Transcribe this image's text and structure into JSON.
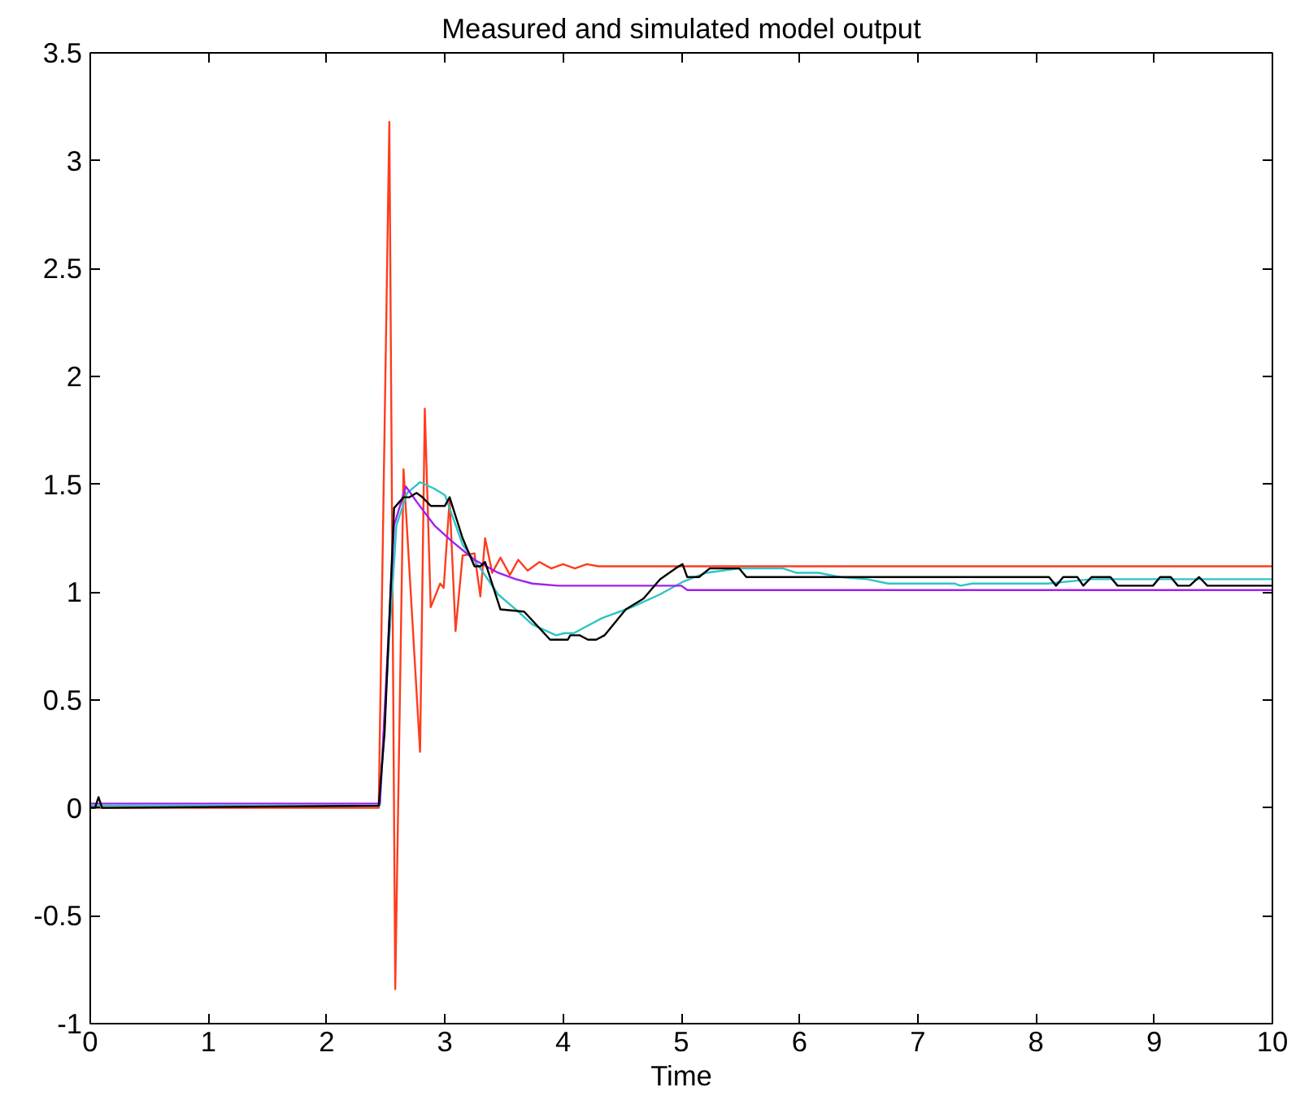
{
  "chart_data": {
    "type": "line",
    "title": "Measured and simulated model output",
    "xlabel": "Time",
    "xlim": [
      0,
      10
    ],
    "ylim": [
      -1,
      3.5
    ],
    "xticks": [
      0,
      1,
      2,
      3,
      4,
      5,
      6,
      7,
      8,
      9,
      10
    ],
    "yticks": [
      -1,
      -0.5,
      0,
      0.5,
      1,
      1.5,
      2,
      2.5,
      3,
      3.5
    ],
    "grid": false,
    "marker": "none",
    "line_style": "solid",
    "series": [
      {
        "color": "#ff3c1e",
        "x": [
          0,
          2.44,
          2.53,
          2.58,
          2.65,
          2.79,
          2.83,
          2.88,
          2.96,
          2.99,
          3.04,
          3.09,
          3.15,
          3.25,
          3.3,
          3.34,
          3.4,
          3.47,
          3.55,
          3.62,
          3.7,
          3.8,
          3.9,
          4.0,
          4.1,
          4.2,
          4.3,
          4.4,
          10
        ],
        "values": [
          0,
          0,
          3.18,
          -0.84,
          1.57,
          0.26,
          1.85,
          0.93,
          1.04,
          1.02,
          1.43,
          0.82,
          1.17,
          1.18,
          0.98,
          1.25,
          1.09,
          1.16,
          1.08,
          1.15,
          1.1,
          1.14,
          1.11,
          1.13,
          1.11,
          1.13,
          1.12,
          1.12,
          1.12
        ]
      },
      {
        "color": "#2ec4c4",
        "x": [
          0,
          2.45,
          2.52,
          2.59,
          2.68,
          2.79,
          2.91,
          3.0,
          3.15,
          3.3,
          3.45,
          3.6,
          3.74,
          3.94,
          4.01,
          4.09,
          4.33,
          4.58,
          4.82,
          5.02,
          5.21,
          5.49,
          5.86,
          5.97,
          6.16,
          6.34,
          6.57,
          6.75,
          7.31,
          7.36,
          7.46,
          8.1,
          8.47,
          10
        ],
        "values": [
          0.01,
          0.01,
          0.71,
          1.31,
          1.46,
          1.51,
          1.48,
          1.45,
          1.22,
          1.11,
          0.99,
          0.92,
          0.85,
          0.8,
          0.81,
          0.81,
          0.88,
          0.93,
          0.99,
          1.05,
          1.09,
          1.11,
          1.11,
          1.09,
          1.09,
          1.07,
          1.06,
          1.04,
          1.04,
          1.03,
          1.04,
          1.04,
          1.06,
          1.06
        ]
      },
      {
        "color": "#a020f0",
        "x": [
          0,
          2.45,
          2.57,
          2.67,
          2.76,
          2.91,
          3.05,
          3.25,
          3.45,
          3.6,
          3.74,
          3.96,
          5.0,
          5.05,
          10
        ],
        "values": [
          0.02,
          0.02,
          1.31,
          1.49,
          1.42,
          1.31,
          1.24,
          1.15,
          1.09,
          1.06,
          1.04,
          1.03,
          1.03,
          1.01,
          1.01
        ]
      },
      {
        "color": "#000000",
        "x": [
          0,
          0.04,
          0.07,
          0.1,
          2.44,
          2.49,
          2.57,
          2.65,
          2.7,
          2.76,
          2.81,
          2.88,
          3.0,
          3.04,
          3.15,
          3.25,
          3.3,
          3.34,
          3.47,
          3.67,
          3.89,
          4.04,
          4.06,
          4.14,
          4.21,
          4.28,
          4.35,
          4.53,
          4.68,
          4.82,
          4.95,
          5.01,
          5.05,
          5.15,
          5.24,
          5.49,
          5.55,
          8.11,
          8.17,
          8.23,
          8.35,
          8.4,
          8.47,
          8.63,
          8.69,
          8.99,
          9.05,
          9.14,
          9.2,
          9.3,
          9.38,
          9.45,
          10
        ],
        "values": [
          0,
          0,
          0.05,
          0,
          0.01,
          0.35,
          1.39,
          1.44,
          1.44,
          1.46,
          1.44,
          1.4,
          1.4,
          1.44,
          1.25,
          1.12,
          1.12,
          1.14,
          0.92,
          0.91,
          0.78,
          0.78,
          0.8,
          0.8,
          0.78,
          0.78,
          0.8,
          0.92,
          0.97,
          1.06,
          1.11,
          1.13,
          1.07,
          1.07,
          1.11,
          1.11,
          1.07,
          1.07,
          1.03,
          1.07,
          1.07,
          1.03,
          1.07,
          1.07,
          1.03,
          1.03,
          1.07,
          1.07,
          1.03,
          1.03,
          1.07,
          1.03,
          1.03
        ]
      }
    ]
  }
}
